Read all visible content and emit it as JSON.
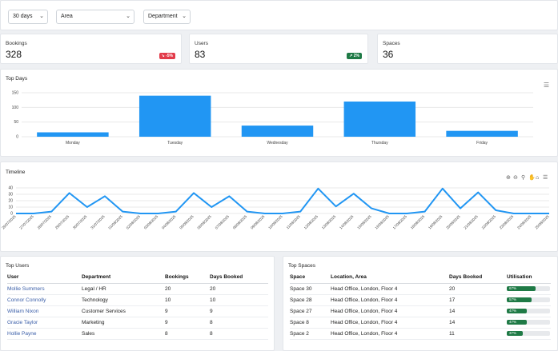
{
  "filters": [
    {
      "value": "30 days"
    },
    {
      "value": "Area"
    },
    {
      "value": "Department"
    }
  ],
  "stats": [
    {
      "label": "Bookings",
      "value": "328",
      "badge": "-5%",
      "badge_color": "#e23b4a",
      "badge_icon": "trend-down-icon"
    },
    {
      "label": "Users",
      "value": "83",
      "badge": "2%",
      "badge_color": "#1f7a46",
      "badge_icon": "trend-up-icon"
    },
    {
      "label": "Spaces",
      "value": "36"
    }
  ],
  "top_days": {
    "title": "Top Days",
    "chart_data": {
      "type": "bar",
      "categories": [
        "Monday",
        "Tuesday",
        "Wednesday",
        "Thursday",
        "Friday"
      ],
      "values": [
        15,
        140,
        38,
        120,
        20
      ],
      "yticks": [
        0,
        50,
        100,
        150
      ],
      "ylim": [
        0,
        150
      ],
      "color": "#2196f3",
      "grid": true
    }
  },
  "timeline": {
    "title": "Timeline",
    "chart_data": {
      "type": "line",
      "x": [
        "26/07/2025",
        "27/07/2025",
        "28/07/2025",
        "29/07/2025",
        "30/07/2025",
        "31/07/2025",
        "01/08/2025",
        "02/08/2025",
        "03/08/2025",
        "04/08/2025",
        "05/08/2025",
        "06/08/2025",
        "07/08/2025",
        "08/08/2025",
        "09/08/2025",
        "10/08/2025",
        "11/08/2025",
        "12/08/2025",
        "13/08/2025",
        "14/08/2025",
        "15/08/2025",
        "16/08/2025",
        "17/08/2025",
        "18/08/2025",
        "19/08/2025",
        "20/08/2025",
        "21/08/2025",
        "22/08/2025",
        "23/08/2025",
        "24/08/2025",
        "25/08/2025"
      ],
      "values": [
        0,
        0,
        3,
        32,
        10,
        27,
        3,
        0,
        0,
        3,
        32,
        10,
        27,
        3,
        0,
        0,
        3,
        39,
        11,
        31,
        8,
        0,
        0,
        3,
        39,
        8,
        33,
        5,
        0,
        0,
        0
      ],
      "yticks": [
        0,
        10,
        20,
        30,
        40
      ],
      "ylim": [
        0,
        45
      ],
      "color": "#2196f3",
      "grid": true
    }
  },
  "top_users": {
    "title": "Top Users",
    "columns": [
      "User",
      "Department",
      "Bookings",
      "Days Booked"
    ],
    "rows": [
      [
        "Mollie Summers",
        "Legal / HR",
        "20",
        "20"
      ],
      [
        "Connor Connolly",
        "Technology",
        "10",
        "10"
      ],
      [
        "William Nixon",
        "Customer Services",
        "9",
        "9"
      ],
      [
        "Gracie Taylor",
        "Marketing",
        "9",
        "8"
      ],
      [
        "Hollie Payne",
        "Sales",
        "8",
        "8"
      ]
    ]
  },
  "top_spaces": {
    "title": "Top Spaces",
    "columns": [
      "Space",
      "Location, Area",
      "Days Booked",
      "Utilisation"
    ],
    "rows": [
      {
        "space": "Space 30",
        "location": "Head Office, London, Floor 4",
        "days": "20",
        "util": 67,
        "util_label": "67%"
      },
      {
        "space": "Space 28",
        "location": "Head Office, London, Floor 4",
        "days": "17",
        "util": 57,
        "util_label": "57%"
      },
      {
        "space": "Space 27",
        "location": "Head Office, London, Floor 4",
        "days": "14",
        "util": 47,
        "util_label": "47%"
      },
      {
        "space": "Space 8",
        "location": "Head Office, London, Floor 4",
        "days": "14",
        "util": 47,
        "util_label": "47%"
      },
      {
        "space": "Space 2",
        "location": "Head Office, London, Floor 4",
        "days": "11",
        "util": 37,
        "util_label": "37%"
      }
    ]
  }
}
